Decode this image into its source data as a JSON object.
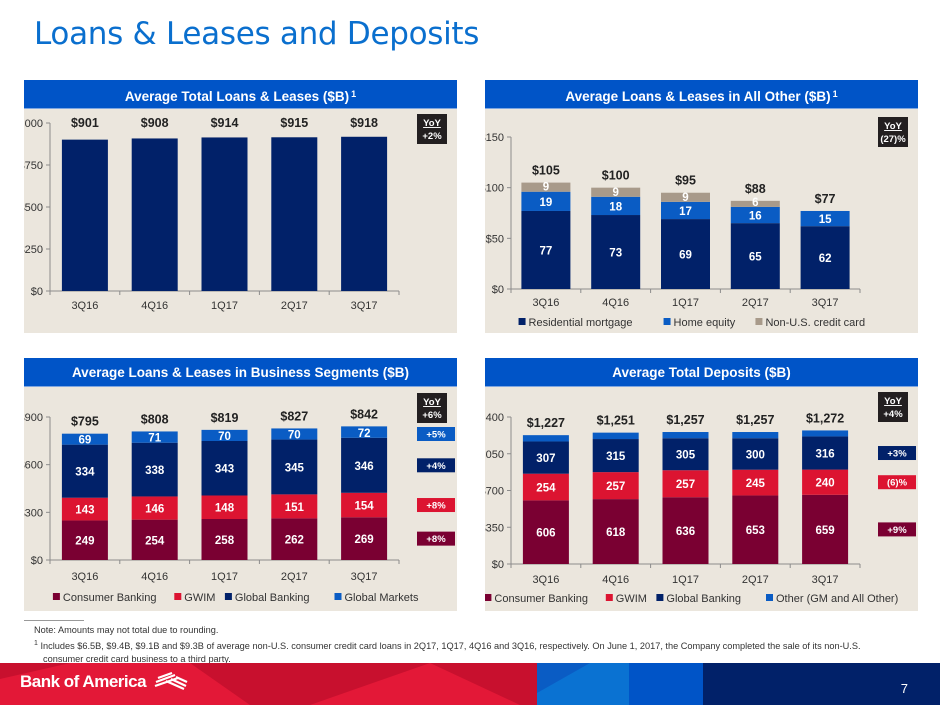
{
  "page": {
    "title": "Loans & Leases and Deposits",
    "page_number": "7",
    "logo_text": "Bank of America"
  },
  "footnotes": {
    "note": "Note: Amounts may not total due to rounding.",
    "fn1_marker": "1",
    "fn1_text": "Includes $6.5B, $9.4B, $9.1B and $9.3B of average non-U.S. consumer credit card loans in 2Q17, 1Q17, 4Q16 and 3Q16, respectively. On June 1, 2017, the Company completed the sale of its non-U.S.",
    "fn1_cont": "consumer credit card business to a third party."
  },
  "colors": {
    "title_blue": "#0a6fce",
    "header_blue": "#0054c7",
    "panel_bg": "#ebe6dd",
    "navy": "#012169",
    "maroon": "#7a0032",
    "red": "#dc1431",
    "bright_blue": "#0a5cc4",
    "taupe": "#a89a8a",
    "yoy_box": "#231f20"
  },
  "chart_data": [
    {
      "id": "total-loans",
      "type": "bar",
      "title": "Average Total Loans & Leases ($B)",
      "title_sup": "1",
      "categories": [
        "3Q16",
        "4Q16",
        "1Q17",
        "2Q17",
        "3Q17"
      ],
      "values": [
        901,
        908,
        914,
        915,
        918
      ],
      "total_labels": [
        "$901",
        "$908",
        "$914",
        "$915",
        "$918"
      ],
      "ylim": [
        0,
        1000
      ],
      "yticks": [
        0,
        250,
        500,
        750,
        1000
      ],
      "ytick_labels": [
        "$0",
        "$250",
        "$500",
        "$750",
        "$1,000"
      ],
      "xlabel": "",
      "ylabel": "",
      "grid": false,
      "series": [
        {
          "name": "Total",
          "color": "#012169",
          "values": [
            901,
            908,
            914,
            915,
            918
          ],
          "show_labels": false
        }
      ],
      "legend": [],
      "yoy": {
        "label": "YoY",
        "total": "+2%",
        "series_changes": []
      }
    },
    {
      "id": "all-other",
      "type": "bar",
      "stacked": true,
      "title": "Average Loans & Leases in All Other ($B)",
      "title_sup": "1",
      "categories": [
        "3Q16",
        "4Q16",
        "1Q17",
        "2Q17",
        "3Q17"
      ],
      "total_labels": [
        "$105",
        "$100",
        "$95",
        "$88",
        "$77"
      ],
      "ylim": [
        0,
        150
      ],
      "yticks": [
        0,
        50,
        100,
        150
      ],
      "ytick_labels": [
        "$0",
        "$50",
        "$100",
        "$150"
      ],
      "xlabel": "",
      "ylabel": "",
      "grid": false,
      "series": [
        {
          "name": "Residential mortgage",
          "color": "#012169",
          "values": [
            77,
            73,
            69,
            65,
            62
          ],
          "show_labels": true
        },
        {
          "name": "Home equity",
          "color": "#0a5cc4",
          "values": [
            19,
            18,
            17,
            16,
            15
          ],
          "show_labels": true
        },
        {
          "name": "Non-U.S. credit card",
          "color": "#a89a8a",
          "values": [
            9,
            9,
            9,
            6,
            0
          ],
          "show_labels": true
        }
      ],
      "legend": [
        "Residential mortgage",
        "Home equity",
        "Non-U.S. credit card"
      ],
      "legend_position": "bottom",
      "yoy": {
        "label": "YoY",
        "total": "(27)%",
        "series_changes": []
      }
    },
    {
      "id": "business-segments",
      "type": "bar",
      "stacked": true,
      "title": "Average Loans & Leases in Business Segments ($B)",
      "title_sup": "",
      "categories": [
        "3Q16",
        "4Q16",
        "1Q17",
        "2Q17",
        "3Q17"
      ],
      "total_labels": [
        "$795",
        "$808",
        "$819",
        "$827",
        "$842"
      ],
      "ylim": [
        0,
        900
      ],
      "yticks": [
        0,
        300,
        600,
        900
      ],
      "ytick_labels": [
        "$0",
        "$300",
        "$600",
        "$900"
      ],
      "xlabel": "",
      "ylabel": "",
      "grid": false,
      "series": [
        {
          "name": "Consumer Banking",
          "color": "#7a0032",
          "values": [
            249,
            254,
            258,
            262,
            269
          ],
          "show_labels": true
        },
        {
          "name": "GWIM",
          "color": "#dc1431",
          "values": [
            143,
            146,
            148,
            151,
            154
          ],
          "show_labels": true
        },
        {
          "name": "Global Banking",
          "color": "#012169",
          "values": [
            334,
            338,
            343,
            345,
            346
          ],
          "show_labels": true
        },
        {
          "name": "Global Markets",
          "color": "#0a5cc4",
          "values": [
            69,
            71,
            70,
            70,
            72
          ],
          "show_labels": true
        }
      ],
      "legend": [
        "Consumer Banking",
        "GWIM",
        "Global Banking",
        "Global Markets"
      ],
      "legend_position": "bottom",
      "yoy": {
        "label": "YoY",
        "total": "+6%",
        "series_changes": [
          "+8%",
          "+8%",
          "+4%",
          "+5%"
        ]
      }
    },
    {
      "id": "total-deposits",
      "type": "bar",
      "stacked": true,
      "title": "Average Total Deposits ($B)",
      "title_sup": "",
      "categories": [
        "3Q16",
        "4Q16",
        "1Q17",
        "2Q17",
        "3Q17"
      ],
      "total_labels": [
        "$1,227",
        "$1,251",
        "$1,257",
        "$1,257",
        "$1,272"
      ],
      "ylim": [
        0,
        1400
      ],
      "yticks": [
        0,
        350,
        700,
        1050,
        1400
      ],
      "ytick_labels": [
        "$0",
        "$350",
        "$700",
        "$1,050",
        "$1,400"
      ],
      "xlabel": "",
      "ylabel": "",
      "grid": false,
      "series": [
        {
          "name": "Consumer Banking",
          "color": "#7a0032",
          "values": [
            606,
            618,
            636,
            653,
            659
          ],
          "show_labels": true
        },
        {
          "name": "GWIM",
          "color": "#dc1431",
          "values": [
            254,
            257,
            257,
            245,
            240
          ],
          "show_labels": true
        },
        {
          "name": "Global Banking",
          "color": "#012169",
          "values": [
            307,
            315,
            305,
            300,
            316
          ],
          "show_labels": true
        },
        {
          "name": "Other (GM and All Other)",
          "color": "#0a5cc4",
          "values": [
            60,
            61,
            59,
            59,
            57
          ],
          "show_labels": false
        }
      ],
      "legend": [
        "Consumer Banking",
        "GWIM",
        "Global Banking",
        "Other (GM and All Other)"
      ],
      "legend_position": "bottom",
      "yoy": {
        "label": "YoY",
        "total": "+4%",
        "series_changes": [
          "+9%",
          "(6)%",
          "+3%",
          null
        ]
      }
    }
  ]
}
